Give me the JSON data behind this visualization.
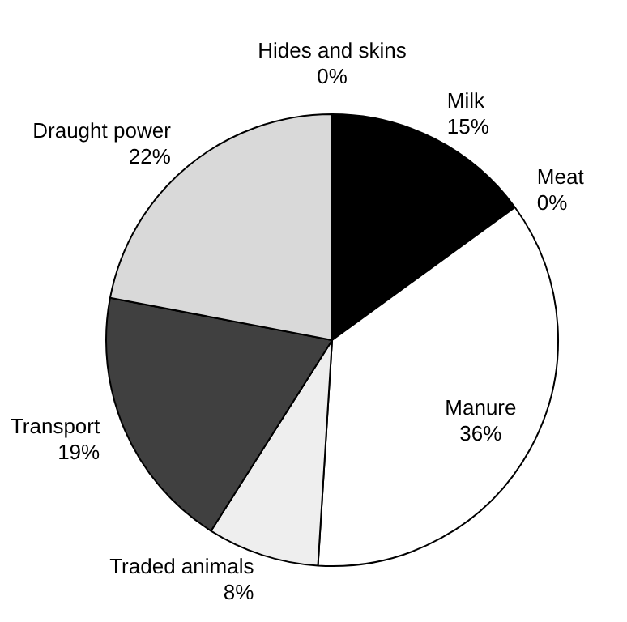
{
  "chart_data": {
    "type": "pie",
    "categories": [
      "Milk",
      "Meat",
      "Manure",
      "Traded animals",
      "Transport",
      "Draught power",
      "Hides and skins"
    ],
    "values": [
      15,
      0,
      36,
      8,
      19,
      22,
      0
    ],
    "value_labels": [
      "15%",
      "0%",
      "36%",
      "8%",
      "19%",
      "22%",
      "0%"
    ],
    "colors": [
      "#000000",
      "#808080",
      "#ffffff",
      "#eeeeee",
      "#404040",
      "#d9d9d9",
      "#999999"
    ],
    "legend": false
  }
}
